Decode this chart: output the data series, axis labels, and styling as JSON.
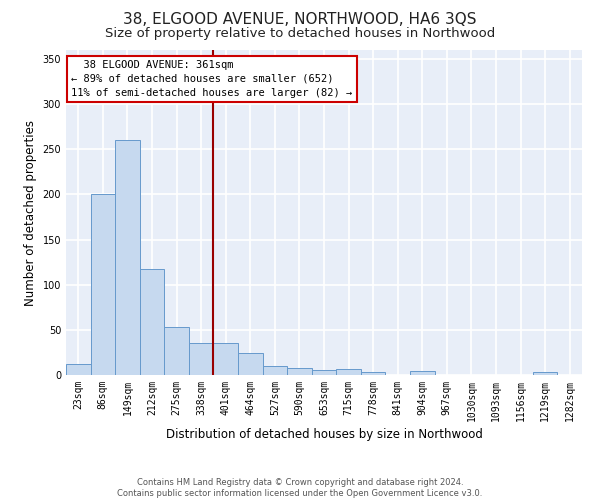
{
  "title": "38, ELGOOD AVENUE, NORTHWOOD, HA6 3QS",
  "subtitle": "Size of property relative to detached houses in Northwood",
  "xlabel": "Distribution of detached houses by size in Northwood",
  "ylabel": "Number of detached properties",
  "categories": [
    "23sqm",
    "86sqm",
    "149sqm",
    "212sqm",
    "275sqm",
    "338sqm",
    "401sqm",
    "464sqm",
    "527sqm",
    "590sqm",
    "653sqm",
    "715sqm",
    "778sqm",
    "841sqm",
    "904sqm",
    "967sqm",
    "1030sqm",
    "1093sqm",
    "1156sqm",
    "1219sqm",
    "1282sqm"
  ],
  "values": [
    12,
    200,
    260,
    117,
    53,
    35,
    35,
    24,
    10,
    8,
    5,
    7,
    3,
    0,
    4,
    0,
    0,
    0,
    0,
    3,
    0
  ],
  "bar_color": "#c6d9ef",
  "bar_edge_color": "#6699cc",
  "vline_x": 6.0,
  "vline_color": "#990000",
  "annotation_line1": "  38 ELGOOD AVENUE: 361sqm",
  "annotation_line2": "← 89% of detached houses are smaller (652)",
  "annotation_line3": "11% of semi-detached houses are larger (82) →",
  "annotation_box_color": "white",
  "annotation_box_edge_color": "#cc0000",
  "ylim": [
    0,
    360
  ],
  "yticks": [
    0,
    50,
    100,
    150,
    200,
    250,
    300,
    350
  ],
  "footnote": "Contains HM Land Registry data © Crown copyright and database right 2024.\nContains public sector information licensed under the Open Government Licence v3.0.",
  "bg_color": "#e8eef8",
  "grid_color": "white",
  "title_fontsize": 11,
  "subtitle_fontsize": 9.5,
  "label_fontsize": 8.5,
  "tick_fontsize": 7,
  "footnote_fontsize": 6
}
